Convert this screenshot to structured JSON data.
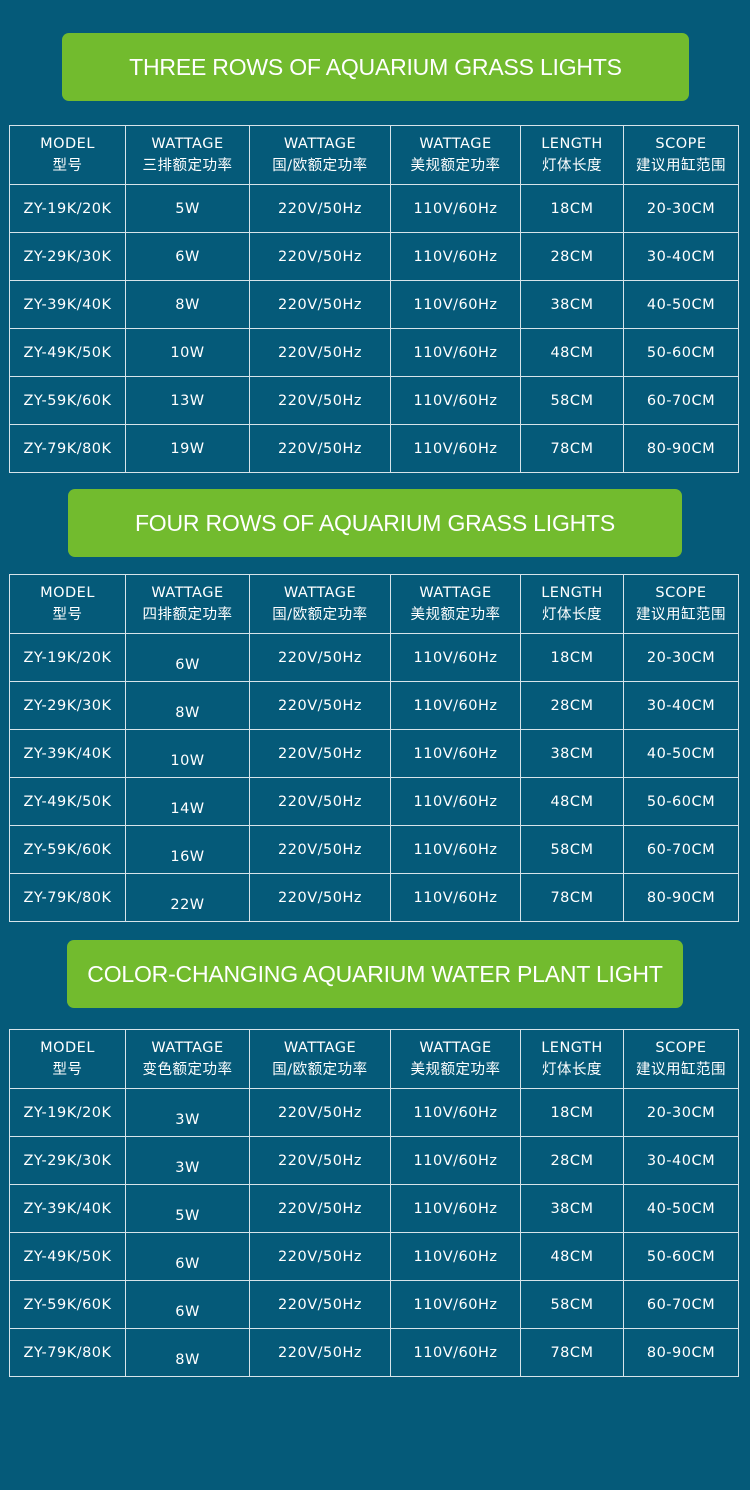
{
  "headers": {
    "model": [
      "MODEL",
      "型号"
    ],
    "wattage_domestic": [
      "WATTAGE",
      "国/欧额定功率"
    ],
    "wattage_us": [
      "WATTAGE",
      "美规额定功率"
    ],
    "length": [
      "LENGTH",
      "灯体长度"
    ],
    "scope": [
      "SCOPE",
      "建议用缸范围"
    ]
  },
  "sections": [
    {
      "title": "THREE ROWS OF AQUARIUM GRASS LIGHTS",
      "wattage_header": [
        "WATTAGE",
        "三排额定功率"
      ],
      "rows": [
        {
          "model": "ZY-19K/20K",
          "watt": "5W",
          "eu": "220V/50Hz",
          "us": "110V/60Hz",
          "length": "18CM",
          "scope": "20-30CM"
        },
        {
          "model": "ZY-29K/30K",
          "watt": "6W",
          "eu": "220V/50Hz",
          "us": "110V/60Hz",
          "length": "28CM",
          "scope": "30-40CM"
        },
        {
          "model": "ZY-39K/40K",
          "watt": "8W",
          "eu": "220V/50Hz",
          "us": "110V/60Hz",
          "length": "38CM",
          "scope": "40-50CM"
        },
        {
          "model": "ZY-49K/50K",
          "watt": "10W",
          "eu": "220V/50Hz",
          "us": "110V/60Hz",
          "length": "48CM",
          "scope": "50-60CM"
        },
        {
          "model": "ZY-59K/60K",
          "watt": "13W",
          "eu": "220V/50Hz",
          "us": "110V/60Hz",
          "length": "58CM",
          "scope": "60-70CM"
        },
        {
          "model": "ZY-79K/80K",
          "watt": "19W",
          "eu": "220V/50Hz",
          "us": "110V/60Hz",
          "length": "78CM",
          "scope": "80-90CM"
        }
      ]
    },
    {
      "title": "FOUR ROWS OF AQUARIUM GRASS LIGHTS",
      "wattage_header": [
        "WATTAGE",
        "四排额定功率"
      ],
      "rows": [
        {
          "model": "ZY-19K/20K",
          "watt": "6W",
          "eu": "220V/50Hz",
          "us": "110V/60Hz",
          "length": "18CM",
          "scope": "20-30CM"
        },
        {
          "model": "ZY-29K/30K",
          "watt": "8W",
          "eu": "220V/50Hz",
          "us": "110V/60Hz",
          "length": "28CM",
          "scope": "30-40CM"
        },
        {
          "model": "ZY-39K/40K",
          "watt": "10W",
          "eu": "220V/50Hz",
          "us": "110V/60Hz",
          "length": "38CM",
          "scope": "40-50CM"
        },
        {
          "model": "ZY-49K/50K",
          "watt": "14W",
          "eu": "220V/50Hz",
          "us": "110V/60Hz",
          "length": "48CM",
          "scope": "50-60CM"
        },
        {
          "model": "ZY-59K/60K",
          "watt": "16W",
          "eu": "220V/50Hz",
          "us": "110V/60Hz",
          "length": "58CM",
          "scope": "60-70CM"
        },
        {
          "model": "ZY-79K/80K",
          "watt": "22W",
          "eu": "220V/50Hz",
          "us": "110V/60Hz",
          "length": "78CM",
          "scope": "80-90CM"
        }
      ]
    },
    {
      "title": "COLOR-CHANGING AQUARIUM WATER PLANT LIGHT",
      "wattage_header": [
        "WATTAGE",
        "变色额定功率"
      ],
      "rows": [
        {
          "model": "ZY-19K/20K",
          "watt": "3W",
          "eu": "220V/50Hz",
          "us": "110V/60Hz",
          "length": "18CM",
          "scope": "20-30CM"
        },
        {
          "model": "ZY-29K/30K",
          "watt": "3W",
          "eu": "220V/50Hz",
          "us": "110V/60Hz",
          "length": "28CM",
          "scope": "30-40CM"
        },
        {
          "model": "ZY-39K/40K",
          "watt": "5W",
          "eu": "220V/50Hz",
          "us": "110V/60Hz",
          "length": "38CM",
          "scope": "40-50CM"
        },
        {
          "model": "ZY-49K/50K",
          "watt": "6W",
          "eu": "220V/50Hz",
          "us": "110V/60Hz",
          "length": "48CM",
          "scope": "50-60CM"
        },
        {
          "model": "ZY-59K/60K",
          "watt": "6W",
          "eu": "220V/50Hz",
          "us": "110V/60Hz",
          "length": "58CM",
          "scope": "60-70CM"
        },
        {
          "model": "ZY-79K/80K",
          "watt": "8W",
          "eu": "220V/50Hz",
          "us": "110V/60Hz",
          "length": "78CM",
          "scope": "80-90CM"
        }
      ]
    }
  ],
  "colors": {
    "background": "#055a79",
    "banner": "#72bb2e",
    "grid": "#d7e4ea",
    "text": "#ffffff"
  }
}
